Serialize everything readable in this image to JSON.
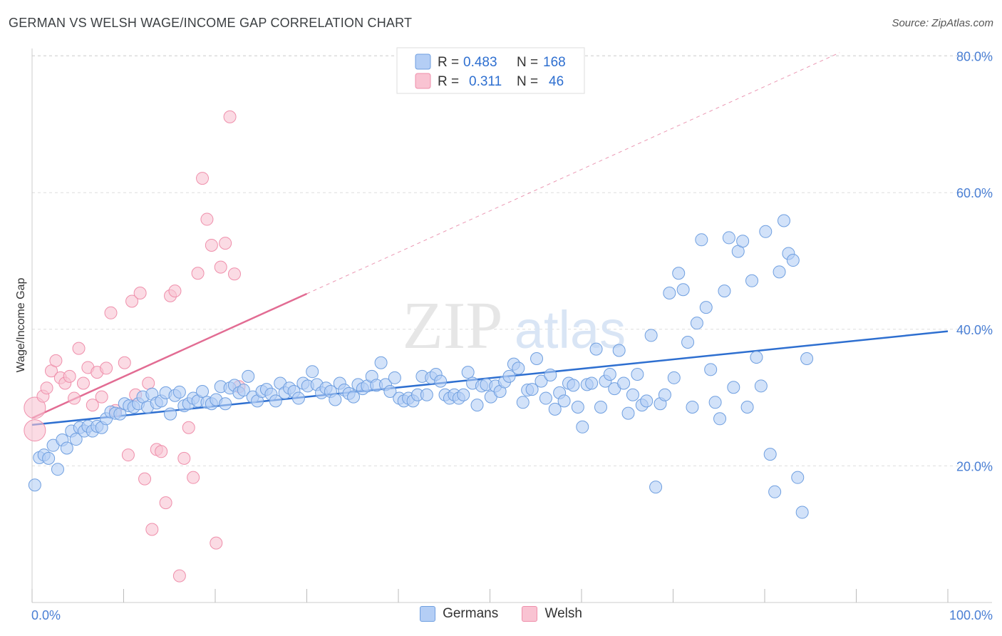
{
  "title": "GERMAN VS WELSH WAGE/INCOME GAP CORRELATION CHART",
  "source": "Source: ZipAtlas.com",
  "watermark": {
    "zip": "ZIP",
    "atlas": "atlas"
  },
  "legend_top": {
    "rows": [
      {
        "r_label": "R =",
        "r_value": "0.483",
        "n_label": "N =",
        "n_value": "168"
      },
      {
        "r_label": "R =",
        "r_value": "0.311",
        "n_label": "N =",
        "n_value": "46"
      }
    ]
  },
  "colors": {
    "germans_fill": "#b4cef5",
    "germans_stroke": "#6f9fe0",
    "germans_line": "#2e6fd0",
    "welsh_fill": "#f9c3d2",
    "welsh_stroke": "#ef8fab",
    "welsh_line": "#e26c93",
    "tick_label": "#4a7fd4",
    "grid": "#dddddd"
  },
  "chart_data": {
    "type": "scatter",
    "title": "GERMAN VS WELSH WAGE/INCOME GAP CORRELATION CHART",
    "xlabel": "",
    "ylabel": "Wage/Income Gap",
    "xlim": [
      0,
      100
    ],
    "ylim": [
      0,
      82
    ],
    "x_tick_labels": [
      "0.0%",
      "100.0%"
    ],
    "y_ticks": [
      20,
      40,
      60,
      80
    ],
    "y_tick_labels": [
      "20.0%",
      "40.0%",
      "60.0%",
      "80.0%"
    ],
    "grid": true,
    "legend_position": "bottom",
    "series": [
      {
        "name": "Germans",
        "r": 0.483,
        "n": 168,
        "trend": {
          "x": [
            0,
            100
          ],
          "y": [
            26,
            39.7
          ]
        },
        "points": [
          [
            0.3,
            17.2
          ],
          [
            0.8,
            21.2
          ],
          [
            1.3,
            21.6
          ],
          [
            1.8,
            21.1
          ],
          [
            2.3,
            23
          ],
          [
            2.8,
            19.5
          ],
          [
            3.3,
            23.8
          ],
          [
            3.8,
            22.6
          ],
          [
            4.3,
            25.1
          ],
          [
            4.8,
            23.9
          ],
          [
            5.2,
            25.6
          ],
          [
            5.7,
            25.1
          ],
          [
            6.1,
            25.8
          ],
          [
            6.6,
            25.1
          ],
          [
            7.1,
            25.8
          ],
          [
            7.6,
            25.6
          ],
          [
            8.1,
            26.9
          ],
          [
            8.6,
            27.9
          ],
          [
            9.1,
            27.7
          ],
          [
            9.6,
            27.6
          ],
          [
            10.1,
            29.1
          ],
          [
            10.6,
            28.8
          ],
          [
            11.1,
            28.6
          ],
          [
            11.6,
            29.1
          ],
          [
            12.1,
            30.1
          ],
          [
            12.6,
            28.6
          ],
          [
            13.1,
            30.5
          ],
          [
            13.6,
            29.2
          ],
          [
            14.1,
            29.5
          ],
          [
            14.6,
            30.7
          ],
          [
            15.1,
            27.6
          ],
          [
            15.6,
            30.3
          ],
          [
            16.1,
            30.8
          ],
          [
            16.6,
            28.8
          ],
          [
            17.1,
            29.1
          ],
          [
            17.6,
            29.9
          ],
          [
            18.1,
            29.5
          ],
          [
            18.6,
            30.9
          ],
          [
            19.1,
            29.3
          ],
          [
            19.6,
            29.1
          ],
          [
            20.1,
            29.7
          ],
          [
            20.6,
            31.6
          ],
          [
            21.1,
            29.1
          ],
          [
            21.6,
            31.4
          ],
          [
            22.1,
            31.8
          ],
          [
            22.6,
            30.7
          ],
          [
            23.1,
            31.1
          ],
          [
            23.6,
            33.1
          ],
          [
            24.1,
            30.1
          ],
          [
            24.6,
            29.5
          ],
          [
            25.1,
            30.9
          ],
          [
            25.6,
            31.2
          ],
          [
            26.1,
            30.5
          ],
          [
            26.6,
            29.5
          ],
          [
            27.1,
            32.1
          ],
          [
            27.6,
            30.7
          ],
          [
            28.1,
            31.4
          ],
          [
            28.6,
            30.9
          ],
          [
            29.1,
            29.9
          ],
          [
            29.6,
            32.1
          ],
          [
            30.1,
            31.7
          ],
          [
            30.6,
            33.8
          ],
          [
            31.1,
            31.9
          ],
          [
            31.6,
            30.7
          ],
          [
            32.1,
            31.4
          ],
          [
            32.6,
            30.9
          ],
          [
            33.1,
            29.7
          ],
          [
            33.6,
            32.1
          ],
          [
            34.1,
            31.1
          ],
          [
            34.6,
            30.6
          ],
          [
            35.1,
            30.1
          ],
          [
            35.6,
            31.9
          ],
          [
            36.1,
            31.3
          ],
          [
            36.6,
            31.7
          ],
          [
            37.1,
            33.1
          ],
          [
            37.6,
            31.8
          ],
          [
            38.1,
            35.1
          ],
          [
            38.6,
            31.9
          ],
          [
            39.1,
            30.9
          ],
          [
            39.6,
            32.9
          ],
          [
            40.1,
            29.9
          ],
          [
            40.6,
            29.5
          ],
          [
            41.1,
            29.9
          ],
          [
            41.6,
            29.5
          ],
          [
            42.1,
            30.4
          ],
          [
            42.6,
            33.1
          ],
          [
            43.1,
            30.4
          ],
          [
            43.6,
            32.9
          ],
          [
            44.1,
            33.4
          ],
          [
            44.6,
            32.4
          ],
          [
            45.1,
            30.4
          ],
          [
            45.6,
            29.9
          ],
          [
            46.1,
            30.4
          ],
          [
            46.6,
            29.9
          ],
          [
            47.1,
            30.4
          ],
          [
            47.6,
            33.7
          ],
          [
            48.1,
            32.1
          ],
          [
            48.6,
            28.9
          ],
          [
            49.1,
            31.7
          ],
          [
            49.6,
            31.9
          ],
          [
            50.1,
            30.1
          ],
          [
            50.6,
            31.7
          ],
          [
            51.1,
            30.9
          ],
          [
            51.6,
            32.3
          ],
          [
            52.1,
            33.1
          ],
          [
            52.6,
            34.9
          ],
          [
            53.1,
            34.3
          ],
          [
            53.6,
            29.3
          ],
          [
            54.1,
            31.1
          ],
          [
            54.6,
            31.2
          ],
          [
            55.1,
            35.7
          ],
          [
            55.6,
            32.4
          ],
          [
            56.1,
            29.9
          ],
          [
            56.6,
            33.3
          ],
          [
            57.1,
            28.3
          ],
          [
            57.6,
            30.7
          ],
          [
            58.1,
            29.5
          ],
          [
            58.6,
            32.1
          ],
          [
            59.1,
            31.8
          ],
          [
            59.6,
            28.6
          ],
          [
            60.1,
            25.7
          ],
          [
            60.6,
            31.9
          ],
          [
            61.1,
            32.1
          ],
          [
            61.6,
            37.1
          ],
          [
            62.1,
            28.6
          ],
          [
            62.6,
            32.4
          ],
          [
            63.1,
            33.4
          ],
          [
            63.6,
            31.3
          ],
          [
            64.1,
            36.9
          ],
          [
            64.6,
            32.1
          ],
          [
            65.1,
            27.7
          ],
          [
            65.6,
            30.4
          ],
          [
            66.1,
            33.4
          ],
          [
            66.6,
            28.9
          ],
          [
            67.1,
            29.5
          ],
          [
            67.6,
            39.1
          ],
          [
            68.1,
            16.9
          ],
          [
            68.6,
            29.1
          ],
          [
            69.1,
            30.4
          ],
          [
            69.6,
            45.3
          ],
          [
            70.1,
            32.9
          ],
          [
            70.6,
            48.2
          ],
          [
            71.1,
            45.8
          ],
          [
            71.6,
            38.1
          ],
          [
            72.1,
            28.6
          ],
          [
            72.6,
            40.9
          ],
          [
            73.1,
            53.1
          ],
          [
            73.6,
            43.2
          ],
          [
            74.1,
            34.1
          ],
          [
            74.6,
            29.3
          ],
          [
            75.1,
            26.9
          ],
          [
            75.6,
            45.6
          ],
          [
            76.1,
            53.4
          ],
          [
            76.6,
            31.5
          ],
          [
            77.1,
            51.4
          ],
          [
            77.6,
            52.9
          ],
          [
            78.1,
            28.6
          ],
          [
            78.6,
            47.1
          ],
          [
            79.1,
            35.9
          ],
          [
            79.6,
            31.7
          ],
          [
            80.1,
            54.3
          ],
          [
            80.6,
            21.7
          ],
          [
            81.1,
            16.2
          ],
          [
            81.6,
            48.4
          ],
          [
            82.1,
            55.9
          ],
          [
            82.6,
            51.1
          ],
          [
            83.1,
            50.1
          ],
          [
            83.6,
            18.3
          ],
          [
            84.1,
            13.2
          ],
          [
            84.6,
            35.7
          ]
        ]
      },
      {
        "name": "Welsh",
        "r": 0.311,
        "n": 46,
        "trend": {
          "x": [
            0,
            30
          ],
          "y": [
            27,
            45.2
          ]
        },
        "points": [
          [
            0.3,
            28.5
          ],
          [
            0.3,
            25.2
          ],
          [
            1.2,
            30.2
          ],
          [
            1.6,
            31.4
          ],
          [
            2.1,
            33.9
          ],
          [
            2.6,
            35.4
          ],
          [
            3.1,
            32.9
          ],
          [
            3.6,
            32.1
          ],
          [
            4.1,
            33.1
          ],
          [
            4.6,
            29.9
          ],
          [
            5.1,
            37.2
          ],
          [
            5.6,
            32.1
          ],
          [
            6.1,
            34.4
          ],
          [
            6.6,
            28.9
          ],
          [
            7.1,
            33.7
          ],
          [
            7.6,
            30.1
          ],
          [
            8.1,
            34.3
          ],
          [
            8.6,
            42.4
          ],
          [
            9.1,
            28.1
          ],
          [
            10.1,
            35.1
          ],
          [
            10.5,
            21.6
          ],
          [
            10.9,
            44.1
          ],
          [
            11.3,
            30.4
          ],
          [
            11.8,
            45.3
          ],
          [
            12.3,
            18.1
          ],
          [
            12.7,
            32.1
          ],
          [
            13.1,
            10.7
          ],
          [
            13.6,
            22.4
          ],
          [
            14.1,
            22.1
          ],
          [
            14.6,
            14.6
          ],
          [
            15.1,
            44.9
          ],
          [
            15.6,
            45.6
          ],
          [
            16.1,
            3.9
          ],
          [
            16.6,
            21.1
          ],
          [
            17.1,
            25.6
          ],
          [
            17.6,
            18.3
          ],
          [
            18.1,
            48.2
          ],
          [
            18.6,
            62.1
          ],
          [
            19.1,
            56.1
          ],
          [
            19.6,
            52.3
          ],
          [
            20.1,
            8.7
          ],
          [
            20.6,
            49.1
          ],
          [
            21.1,
            52.6
          ],
          [
            21.6,
            71.1
          ],
          [
            22.1,
            48.1
          ],
          [
            22.6,
            31.6
          ]
        ]
      }
    ]
  }
}
